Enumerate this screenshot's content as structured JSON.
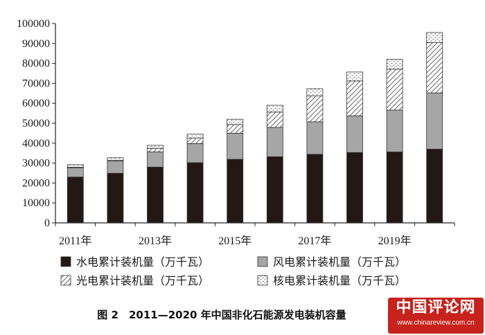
{
  "chart_data": {
    "type": "stacked-bar",
    "title": "",
    "xlabel": "",
    "ylabel": "",
    "ylim": [
      0,
      100000
    ],
    "yticks": [
      0,
      10000,
      20000,
      30000,
      40000,
      50000,
      60000,
      70000,
      80000,
      90000,
      100000
    ],
    "categories": [
      "2011",
      "2012",
      "2013",
      "2014",
      "2015",
      "2016",
      "2017",
      "2018",
      "2019",
      "2020"
    ],
    "x_tick_labels": [
      {
        "index": 0,
        "label": "2011年"
      },
      {
        "index": 2,
        "label": "2013年"
      },
      {
        "index": 4,
        "label": "2015年"
      },
      {
        "index": 6,
        "label": "2017年"
      },
      {
        "index": 8,
        "label": "2019年"
      }
    ],
    "grid": false,
    "legend_position": "bottom",
    "series": [
      {
        "name": "水电累计装机量（万千瓦）",
        "pattern": "solid-dark",
        "color": "#231815",
        "values": [
          23000,
          24900,
          28000,
          30200,
          31900,
          33200,
          34400,
          35300,
          35600,
          37000
        ]
      },
      {
        "name": "风电累计装机量（万千瓦）",
        "pattern": "solid-gray",
        "color": "#a6a6a6",
        "values": [
          4600,
          6100,
          7600,
          9600,
          13100,
          14700,
          16300,
          18400,
          21000,
          28200
        ]
      },
      {
        "name": "光电累计装机量（万千瓦）",
        "pattern": "diagonal-hatch",
        "color": "#ffffff",
        "values": [
          300,
          400,
          1800,
          2700,
          4300,
          7700,
          13000,
          17500,
          20500,
          25300
        ]
      },
      {
        "name": "核电累计装机量（万千瓦）",
        "pattern": "dotted",
        "color": "#ffffff",
        "values": [
          1300,
          1300,
          1500,
          2000,
          2700,
          3400,
          3600,
          4500,
          4900,
          5000
        ]
      }
    ]
  },
  "caption": "图 2　2011—2020 年中国非化石能源发电装机容量",
  "watermark": {
    "title": "中国评论网",
    "url": "www.chinareview.com.cn"
  }
}
